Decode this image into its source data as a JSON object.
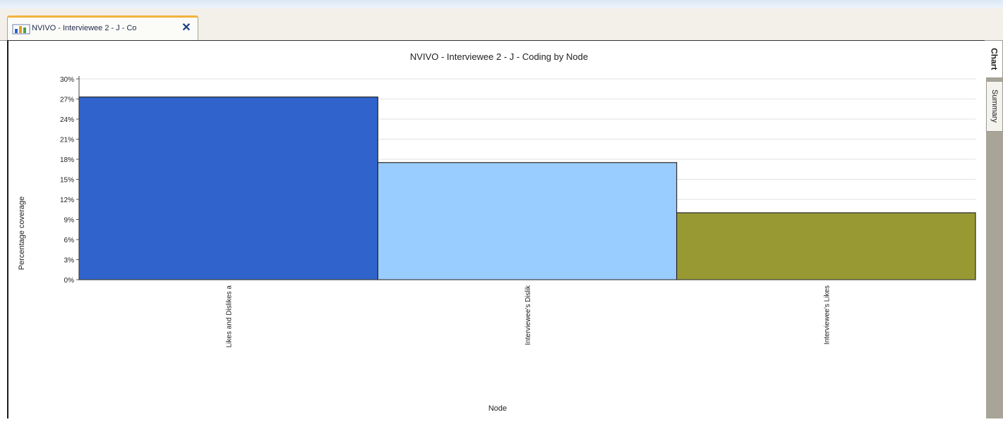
{
  "tab": {
    "label": "NVIVO - Interviewee 2 - J - Co",
    "icon": "bar-chart-icon",
    "close_icon": "close-icon",
    "close_glyph": "✕"
  },
  "sidebar": {
    "tabs": [
      {
        "label": "Chart",
        "active": true
      },
      {
        "label": "Summary",
        "active": false
      }
    ]
  },
  "chart_data": {
    "type": "bar",
    "title": "NVIVO - Interviewee 2 - J - Coding by Node",
    "xlabel": "Node",
    "ylabel": "Percentage coverage",
    "categories": [
      "Likes and Dislikes a",
      "Interviewee's Dislik",
      "Interviewee's Likes"
    ],
    "values": [
      27.3,
      17.5,
      10.0
    ],
    "colors": [
      "#3064cc",
      "#99ccff",
      "#999933"
    ],
    "ylim": [
      0,
      30
    ],
    "yticks": [
      0,
      3,
      6,
      9,
      12,
      15,
      18,
      21,
      24,
      27,
      30
    ],
    "ytick_labels": [
      "0%",
      "3%",
      "6%",
      "9%",
      "12%",
      "15%",
      "18%",
      "21%",
      "24%",
      "27%",
      "30%"
    ],
    "grid": true
  }
}
